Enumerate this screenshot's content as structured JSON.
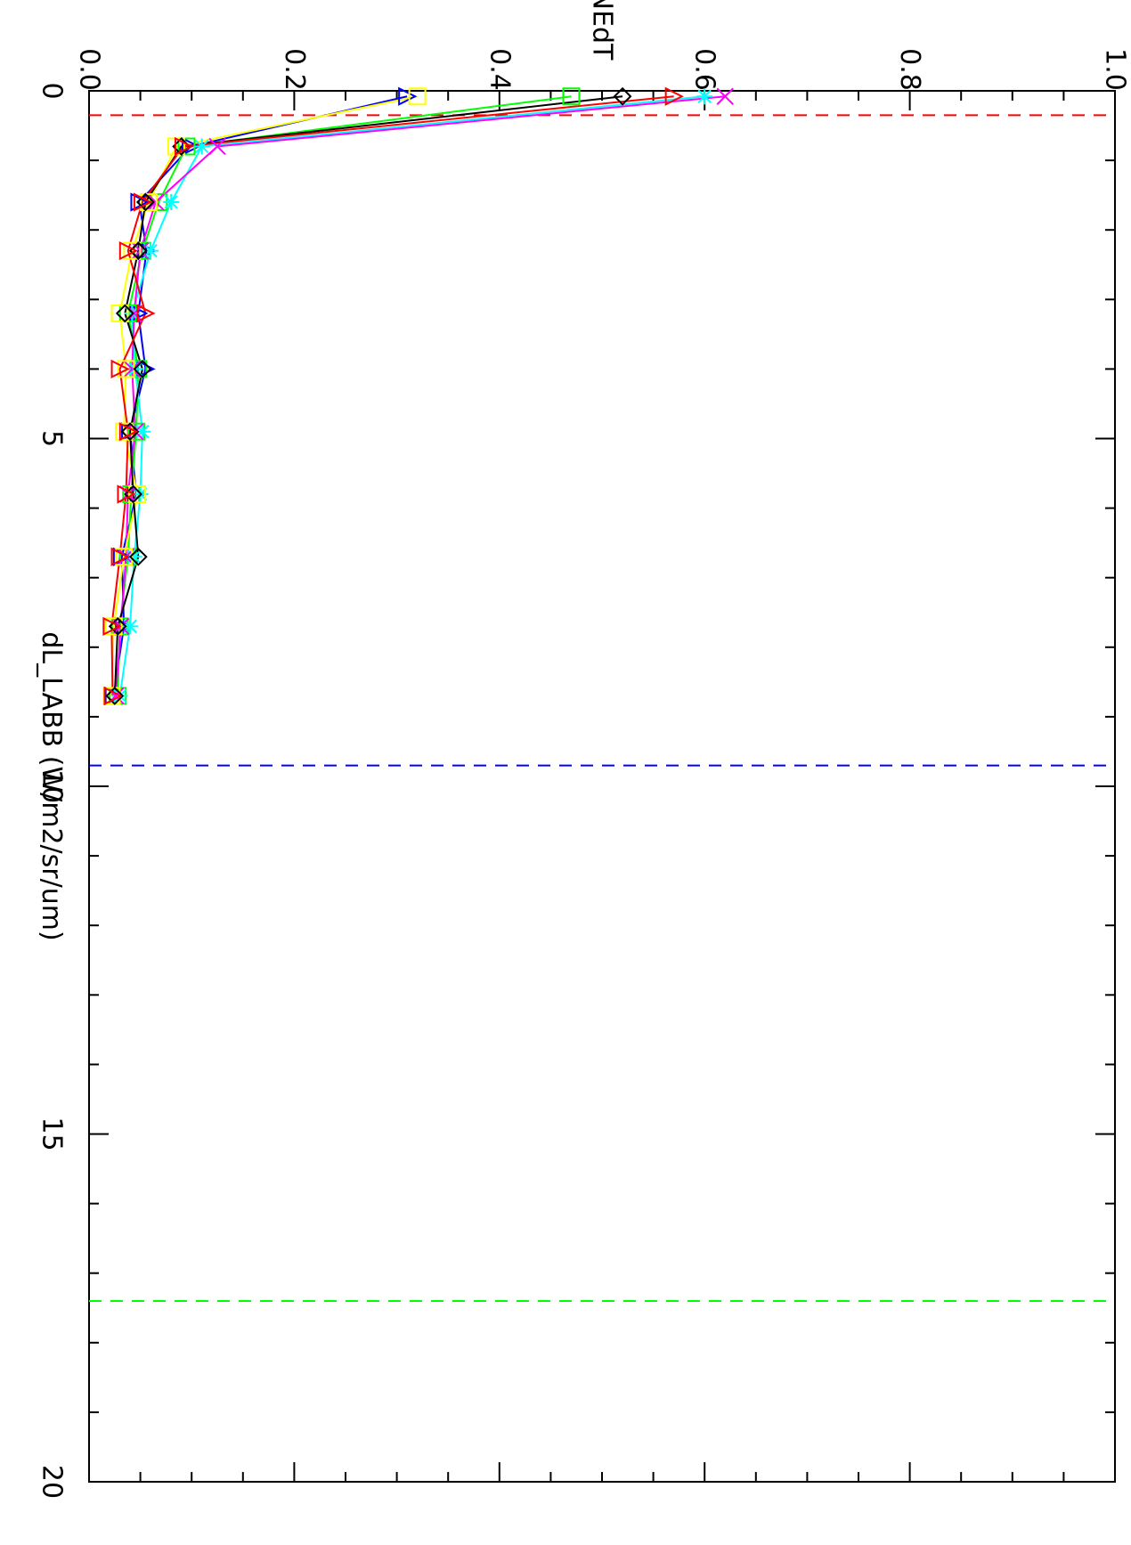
{
  "chart_data": {
    "type": "line",
    "xlabel": "dL_LABB (W/m2/sr/um)",
    "ylabel": "NEdT",
    "xlim": [
      0,
      20
    ],
    "ylim": [
      0.0,
      1.0
    ],
    "x_ticks": [
      "0",
      "5",
      "10",
      "15",
      "20"
    ],
    "y_ticks": [
      "0.0",
      "0.2",
      "0.4",
      "0.6",
      "0.8",
      "1.0"
    ],
    "grid": false,
    "orientation": "rotated 90 degrees clockwise",
    "reference_lines": [
      {
        "axis": "x",
        "value": 0.35,
        "color": "#ff0000",
        "style": "dashed"
      },
      {
        "axis": "x",
        "value": 9.7,
        "color": "#0000ff",
        "style": "dashed"
      },
      {
        "axis": "x",
        "value": 17.4,
        "color": "#00ff00",
        "style": "dashed"
      }
    ],
    "series": [
      {
        "color": "#0000ff",
        "marker": "triangle",
        "x": [
          0.08,
          0.8,
          1.6,
          2.3,
          3.2,
          4.0,
          4.9,
          5.8,
          6.7,
          7.7,
          8.7
        ],
        "y": [
          0.31,
          0.099,
          0.049,
          0.056,
          0.048,
          0.055,
          0.04,
          0.046,
          0.032,
          0.034,
          0.024
        ]
      },
      {
        "color": "#00ff00",
        "marker": "square",
        "x": [
          0.08,
          0.8,
          1.6,
          2.3,
          3.2,
          4.0,
          4.9,
          5.8,
          6.7,
          7.7,
          8.7
        ],
        "y": [
          0.47,
          0.095,
          0.068,
          0.052,
          0.038,
          0.048,
          0.046,
          0.041,
          0.038,
          0.03,
          0.028
        ]
      },
      {
        "color": "#00ffff",
        "marker": "asterisk",
        "x": [
          0.08,
          0.8,
          1.6,
          2.3,
          3.2,
          4.0,
          4.9,
          5.8,
          6.7,
          7.7,
          8.7
        ],
        "y": [
          0.6,
          0.11,
          0.08,
          0.06,
          0.042,
          0.045,
          0.052,
          0.05,
          0.044,
          0.04,
          0.03
        ]
      },
      {
        "color": "#ff00ff",
        "marker": "x",
        "x": [
          0.08,
          0.8,
          1.6,
          2.3,
          3.2,
          4.0,
          4.9,
          5.8,
          6.7,
          7.7,
          8.7
        ],
        "y": [
          0.62,
          0.125,
          0.065,
          0.05,
          0.044,
          0.042,
          0.045,
          0.038,
          0.036,
          0.031,
          0.026
        ]
      },
      {
        "color": "#ffff00",
        "marker": "square",
        "x": [
          0.08,
          0.8,
          1.6,
          2.3,
          3.2,
          4.0,
          4.9,
          5.8,
          6.7,
          7.7,
          8.7
        ],
        "y": [
          0.32,
          0.085,
          0.058,
          0.042,
          0.03,
          0.036,
          0.034,
          0.047,
          0.034,
          0.024,
          0.022
        ]
      },
      {
        "color": "#000000",
        "marker": "diamond",
        "x": [
          0.08,
          0.8,
          1.6,
          2.3,
          3.2,
          4.0,
          4.9,
          5.8,
          6.7,
          7.7,
          8.7
        ],
        "y": [
          0.52,
          0.09,
          0.055,
          0.048,
          0.035,
          0.052,
          0.04,
          0.043,
          0.048,
          0.028,
          0.025
        ]
      },
      {
        "color": "#ff0000",
        "marker": "triangle",
        "x": [
          0.08,
          0.8,
          1.6,
          2.3,
          3.2,
          4.0,
          4.9,
          5.8,
          6.7,
          7.7,
          8.7
        ],
        "y": [
          0.57,
          0.092,
          0.052,
          0.038,
          0.055,
          0.03,
          0.038,
          0.036,
          0.03,
          0.022,
          0.023
        ]
      }
    ]
  }
}
